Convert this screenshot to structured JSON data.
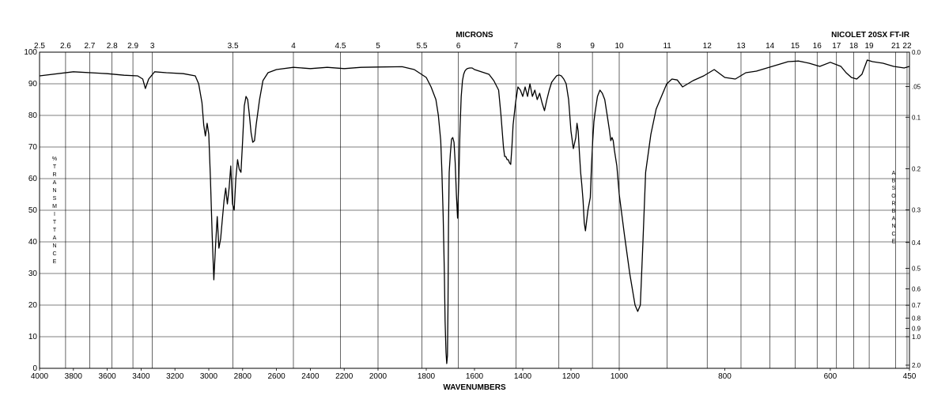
{
  "chart_data": {
    "type": "line",
    "title": "",
    "header_left": "MICRONS",
    "header_right": "NICOLET 20SX FT-IR",
    "xlabel": "WAVENUMBERS",
    "ylabel": "%TRANSMITTANCE",
    "ylabel_right": "ABSORBANCE",
    "ylim": [
      0,
      100
    ],
    "x_ticks": [
      4000,
      3800,
      3600,
      3400,
      3200,
      3000,
      2800,
      2600,
      2400,
      2200,
      2000,
      1800,
      1600,
      1400,
      1200,
      1000,
      800,
      600,
      450
    ],
    "y_ticks": [
      0,
      10,
      20,
      30,
      40,
      50,
      60,
      70,
      80,
      90,
      100
    ],
    "micron_ticks": [
      "2.5",
      "2.6",
      "2.7",
      "2.8",
      "2.9",
      "3",
      "3.5",
      "4",
      "4.5",
      "5",
      "5.5",
      "6",
      "7",
      "8",
      "9",
      "10",
      "11",
      "12",
      "13",
      "14",
      "15",
      "16",
      "17",
      "18",
      "19",
      "21",
      "22"
    ],
    "absorbance_ticks": [
      "0.0",
      ".05",
      "0.1",
      "0.2",
      "0.3",
      "0.4",
      "0.5",
      "0.6",
      "0.7",
      "0.8",
      "0.9",
      "1.0",
      "2.0"
    ],
    "grid": true,
    "series": [
      {
        "x": [
          4000,
          3800,
          3600,
          3500,
          3420,
          3390,
          3375,
          3355,
          3320,
          3250,
          3150,
          3080,
          3060,
          3040,
          3030,
          3020,
          3010,
          3000,
          2990,
          2980,
          2970,
          2960,
          2950,
          2940,
          2930,
          2920,
          2910,
          2900,
          2890,
          2880,
          2870,
          2860,
          2850,
          2840,
          2830,
          2820,
          2810,
          2800,
          2790,
          2780,
          2770,
          2760,
          2750,
          2740,
          2730,
          2720,
          2700,
          2680,
          2650,
          2600,
          2500,
          2400,
          2300,
          2200,
          2100,
          2000,
          1900,
          1850,
          1800,
          1780,
          1760,
          1750,
          1740,
          1735,
          1730,
          1725,
          1722,
          1718,
          1715,
          1712,
          1710,
          1708,
          1705,
          1700,
          1695,
          1690,
          1685,
          1680,
          1675,
          1670,
          1665,
          1660,
          1655,
          1650,
          1645,
          1640,
          1635,
          1630,
          1620,
          1610,
          1600,
          1580,
          1560,
          1540,
          1520,
          1500,
          1490,
          1480,
          1475,
          1470,
          1465,
          1460,
          1455,
          1450,
          1445,
          1440,
          1430,
          1420,
          1410,
          1400,
          1390,
          1380,
          1370,
          1360,
          1350,
          1340,
          1330,
          1320,
          1310,
          1300,
          1290,
          1280,
          1270,
          1260,
          1250,
          1240,
          1230,
          1220,
          1210,
          1200,
          1190,
          1180,
          1175,
          1170,
          1165,
          1160,
          1155,
          1150,
          1145,
          1140,
          1130,
          1120,
          1115,
          1110,
          1105,
          1100,
          1090,
          1080,
          1070,
          1060,
          1050,
          1040,
          1035,
          1030,
          1025,
          1020,
          1010,
          1000,
          990,
          980,
          970,
          965,
          960,
          955,
          950,
          940,
          930,
          920,
          910,
          900,
          890,
          880,
          860,
          840,
          820,
          800,
          780,
          760,
          740,
          720,
          700,
          680,
          660,
          640,
          620,
          600,
          580,
          570,
          560,
          550,
          540,
          530,
          520,
          500,
          480,
          460,
          450
        ],
        "y": [
          92.5,
          93.8,
          93.2,
          92.7,
          92.5,
          91.5,
          88.5,
          91.5,
          93.8,
          93.5,
          93.2,
          92.5,
          90,
          84,
          77,
          73.5,
          77.5,
          74,
          60,
          42,
          28,
          39,
          48,
          38,
          41,
          47,
          53,
          57,
          52,
          57,
          64,
          52,
          50,
          60,
          66,
          63,
          62,
          72,
          83,
          86,
          85,
          80,
          74.5,
          71.5,
          72,
          77,
          85,
          91,
          93.5,
          94.5,
          95.2,
          94.8,
          95.2,
          94.8,
          95.2,
          95.3,
          95.4,
          94.5,
          92,
          89,
          85,
          80,
          72,
          62,
          48,
          30,
          15,
          5,
          1.5,
          4,
          20,
          45,
          62,
          68,
          72.5,
          73,
          71.5,
          65,
          55,
          47.5,
          60,
          76,
          86,
          91,
          93,
          94,
          94.5,
          94.8,
          95,
          95,
          94.5,
          94,
          93.5,
          93,
          91,
          88,
          80,
          70,
          67,
          67,
          66,
          66,
          65,
          64.5,
          70,
          77,
          84,
          89,
          88,
          86,
          89,
          86,
          90,
          86,
          88,
          85,
          87,
          84,
          81.5,
          85,
          88,
          90.5,
          91.5,
          92.5,
          92.8,
          92.5,
          91.5,
          90,
          85,
          75,
          69.5,
          73,
          77.5,
          75,
          68,
          62,
          58,
          53,
          46,
          43.5,
          50,
          54,
          64,
          72,
          78,
          81,
          86,
          88,
          87,
          85,
          80,
          75,
          72,
          73,
          72,
          69,
          64,
          55,
          42,
          30,
          20,
          18,
          20,
          40,
          62,
          74,
          82,
          86,
          90,
          91.5,
          91.2,
          89,
          91,
          92.5,
          94.5,
          92,
          91.5,
          93.5,
          94,
          95,
          96,
          97,
          97.2,
          96.5,
          95.5,
          96.8,
          95.5,
          93.5,
          92,
          91.5,
          93,
          97.5,
          97,
          96.5,
          95.5,
          95,
          95.5
        ]
      }
    ]
  }
}
